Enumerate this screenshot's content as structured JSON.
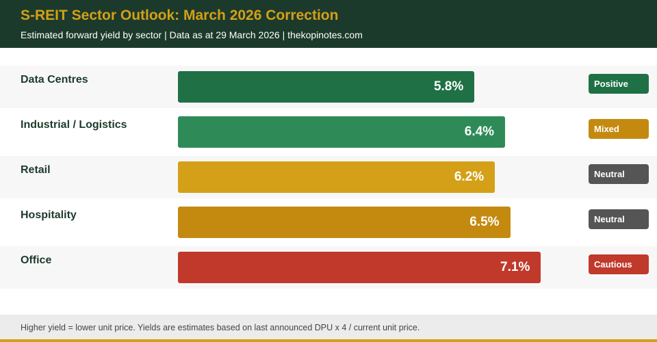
{
  "header": {
    "title": "S-REIT Sector Outlook: March 2026 Correction",
    "subtitle": "Estimated forward yield by sector | Data as at 29 March 2026 | thekopinotes.com"
  },
  "chart_data": {
    "type": "bar",
    "orientation": "horizontal",
    "unit": "%",
    "categories": [
      "Data Centres",
      "Industrial / Logistics",
      "Retail",
      "Hospitality",
      "Office"
    ],
    "values": [
      5.8,
      6.4,
      6.2,
      6.5,
      7.1
    ],
    "value_labels": [
      "5.8%",
      "6.4%",
      "6.2%",
      "6.5%",
      "7.1%"
    ],
    "bar_colors": [
      "#1f7145",
      "#2e8b57",
      "#d4a017",
      "#c48a10",
      "#c0392b"
    ],
    "outlooks": [
      "Positive",
      "Mixed",
      "Neutral",
      "Neutral",
      "Cautious"
    ],
    "outlook_colors": [
      "#1f7145",
      "#c48a10",
      "#555555",
      "#555555",
      "#c0392b"
    ],
    "xlim": [
      0,
      8.3
    ],
    "grid": false,
    "legend": "none"
  },
  "footer": {
    "note": "Higher yield = lower unit price. Yields are estimates based on last announced DPU x 4 / current unit price."
  },
  "colors": {
    "header_bg": "#1c3a2b",
    "accent": "#d4a017",
    "row_shade": "#f7f7f7",
    "footer_bg": "#ececec"
  }
}
